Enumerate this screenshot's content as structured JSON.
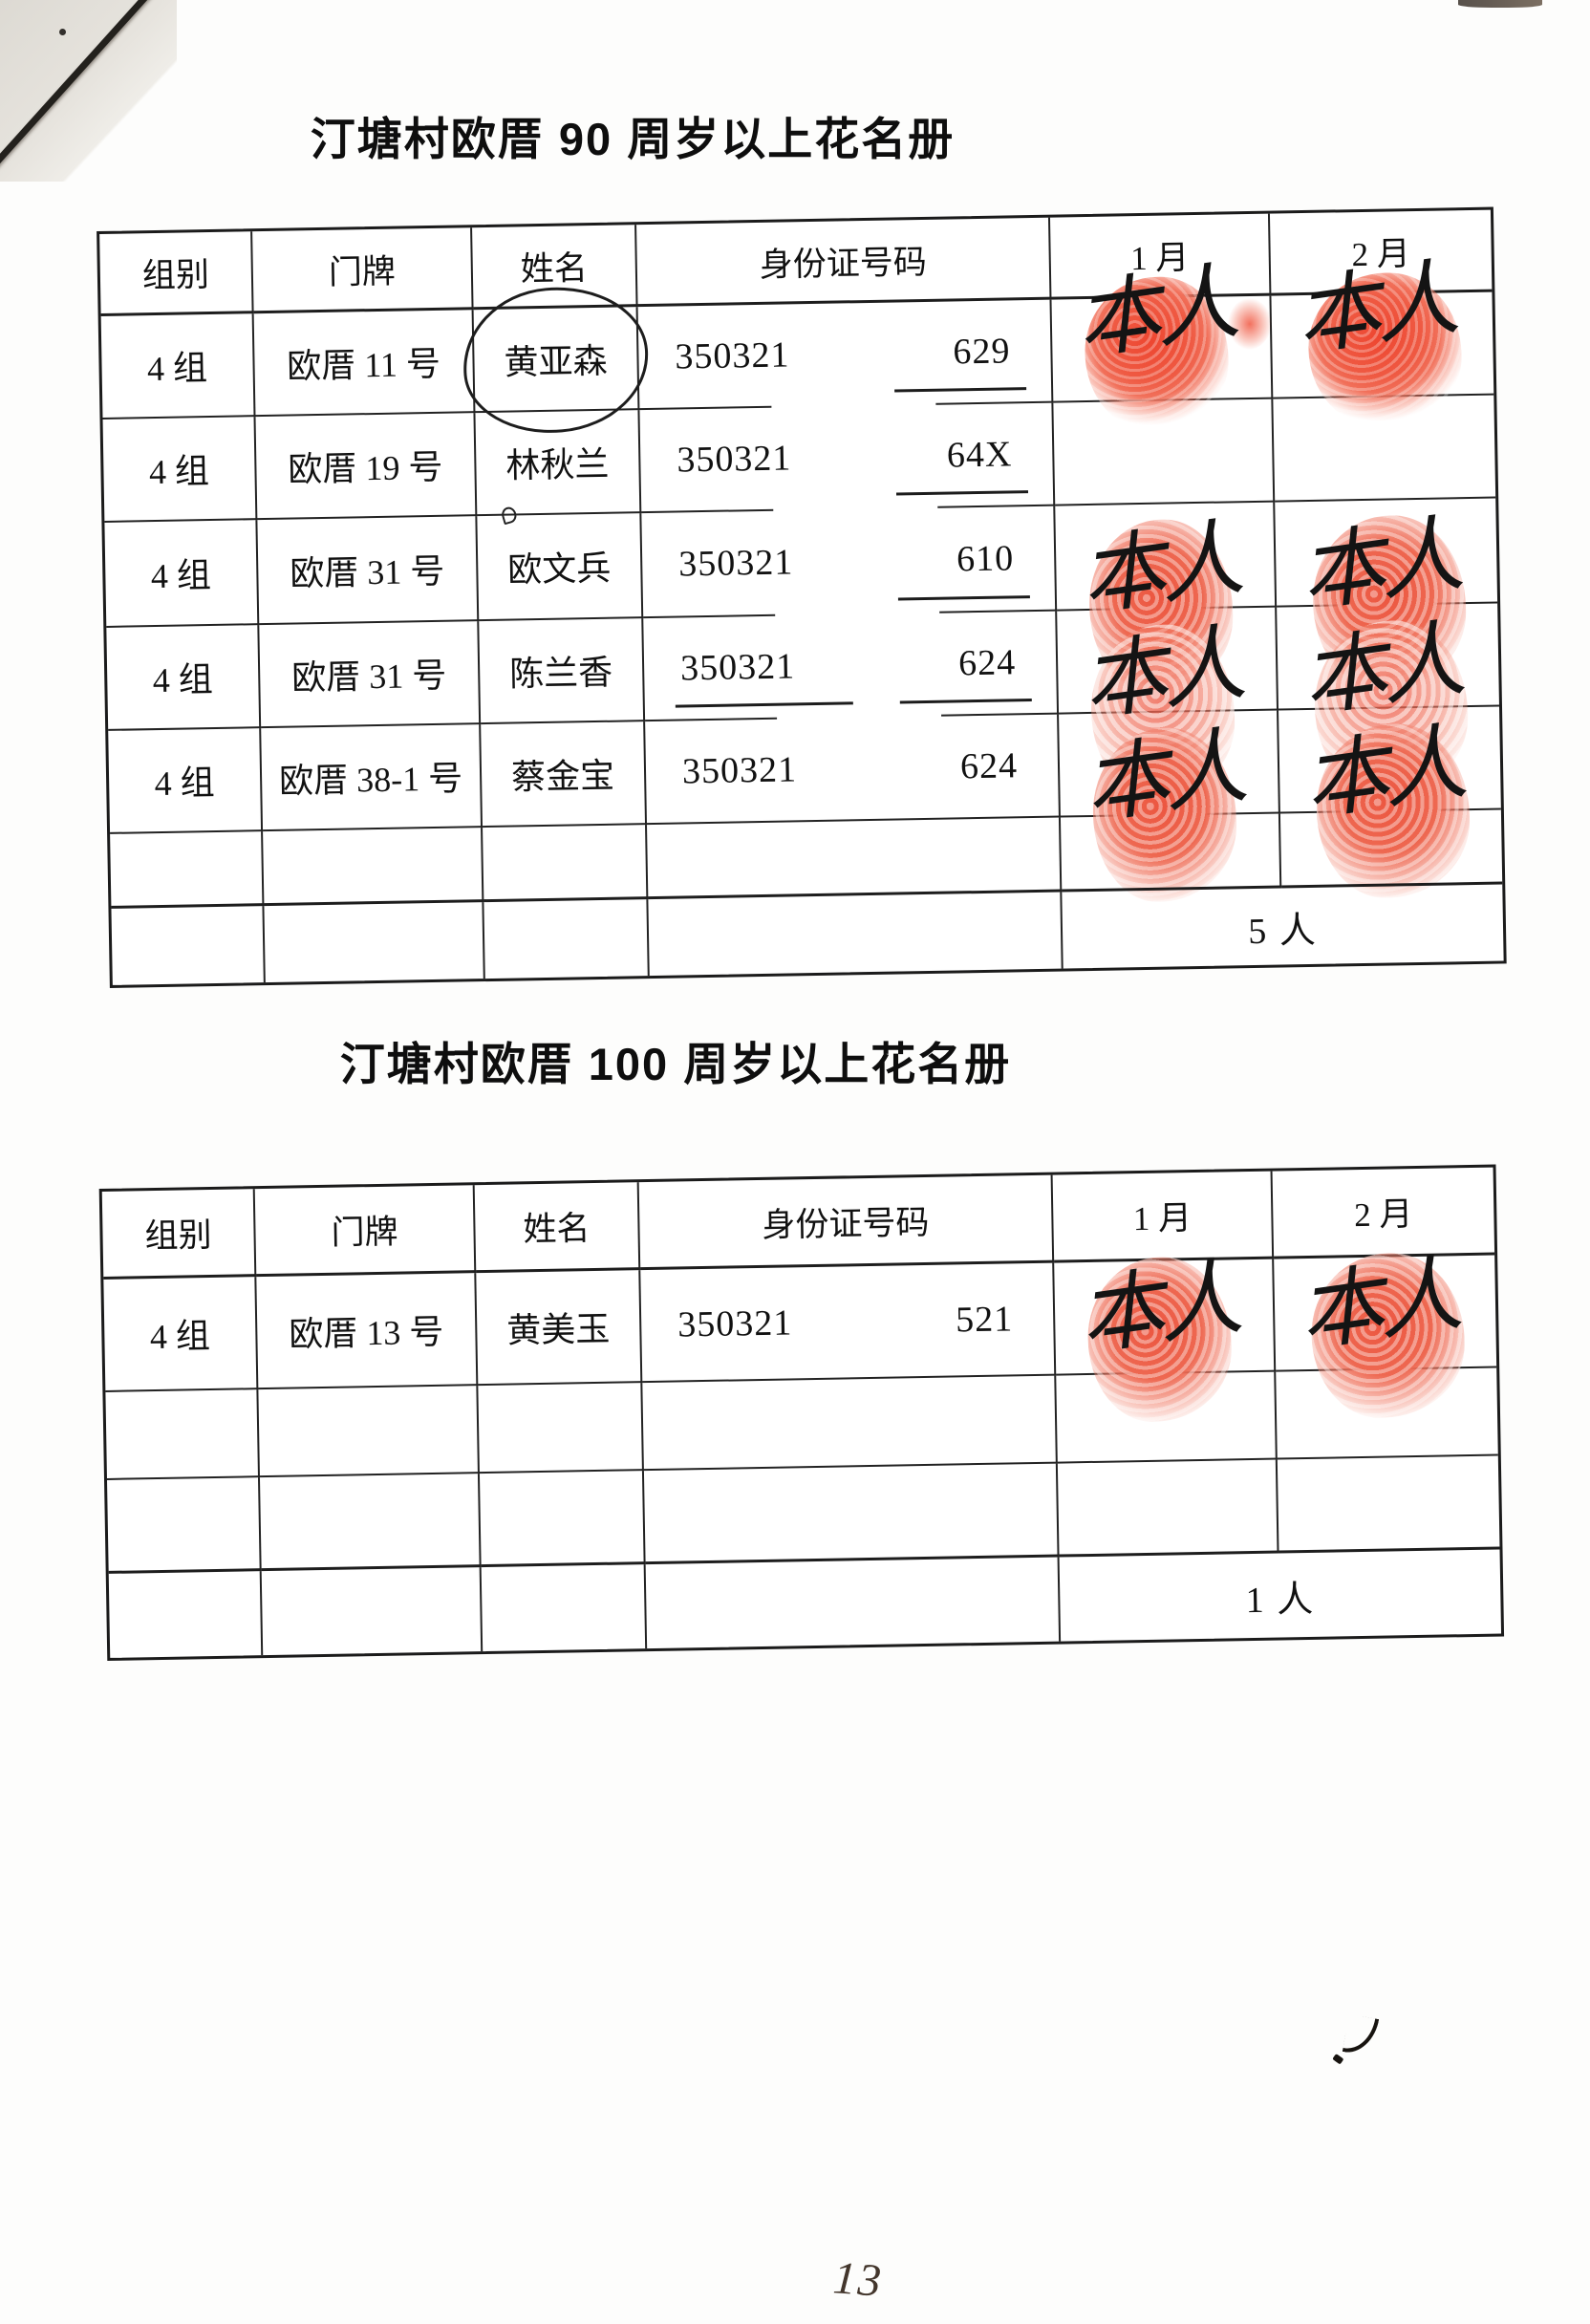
{
  "stamp_label": "本人",
  "annotations": {
    "page_number": "13"
  },
  "tables": [
    {
      "title": "汀塘村欧厝 90 周岁以上花名册",
      "columns": [
        "组别",
        "门牌",
        "姓名",
        "身份证号码",
        "1 月",
        "2 月"
      ],
      "rows": [
        {
          "group": "4 组",
          "house": "欧厝 11 号",
          "name": "黄亚森",
          "name_circled": true,
          "id_prefix": "350321",
          "id_suffix": "629",
          "suffix_underline": true,
          "jan_stamp": true,
          "feb_stamp": true
        },
        {
          "group": "4 组",
          "house": "欧厝 19 号",
          "name": "林秋兰",
          "name_mark": true,
          "id_prefix": "350321",
          "id_suffix": "64X",
          "suffix_underline": true,
          "jan_stamp": false,
          "feb_stamp": false
        },
        {
          "group": "4 组",
          "house": "欧厝 31 号",
          "name": "欧文兵",
          "id_prefix": "350321",
          "id_suffix": "610",
          "suffix_underline": true,
          "jan_stamp": true,
          "feb_stamp": true
        },
        {
          "group": "4 组",
          "house": "欧厝 31 号",
          "name": "陈兰香",
          "id_prefix": "350321",
          "id_suffix": "624",
          "suffix_underline": true,
          "prefix_underline": true,
          "jan_stamp": true,
          "feb_stamp": true
        },
        {
          "group": "4 组",
          "house": "欧厝 38-1 号",
          "name": "蔡金宝",
          "id_prefix": "350321",
          "id_suffix": "624",
          "jan_stamp": true,
          "feb_stamp": true
        }
      ],
      "empty_rows": 1,
      "summary": "5 人"
    },
    {
      "title": "汀塘村欧厝 100 周岁以上花名册",
      "columns": [
        "组别",
        "门牌",
        "姓名",
        "身份证号码",
        "1 月",
        "2 月"
      ],
      "rows": [
        {
          "group": "4 组",
          "house": "欧厝 13 号",
          "name": "黄美玉",
          "id_prefix": "350321",
          "id_suffix": "521",
          "jan_stamp": true,
          "feb_stamp": true
        }
      ],
      "empty_rows": 2,
      "summary": "1 人"
    }
  ]
}
